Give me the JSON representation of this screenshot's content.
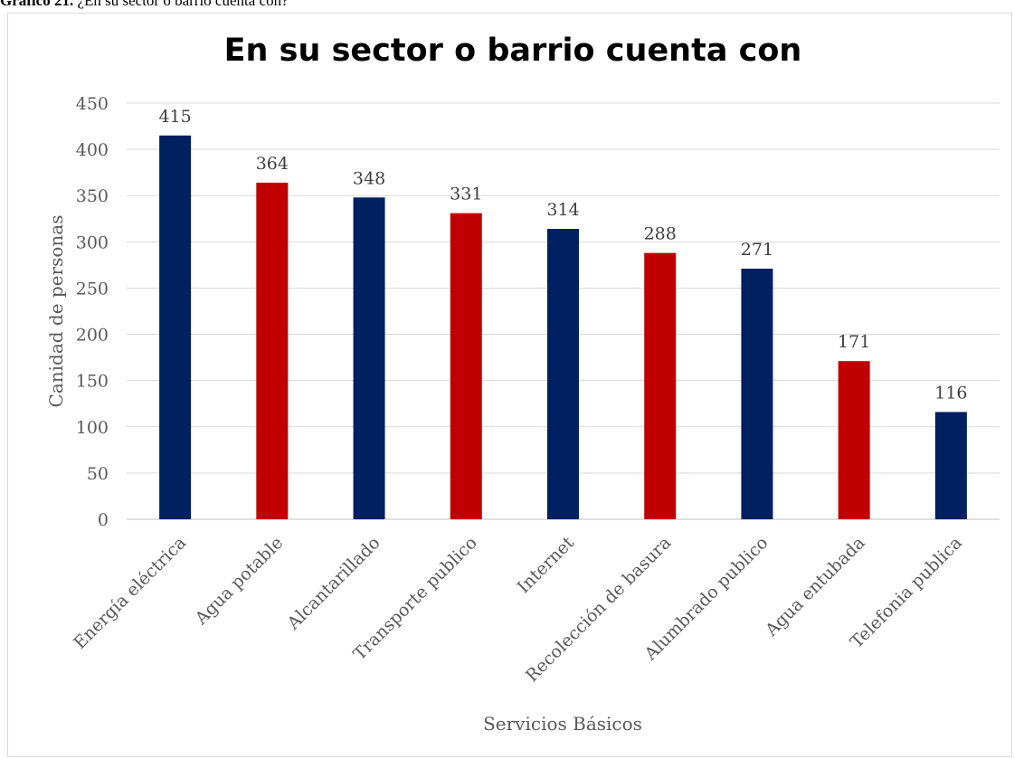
{
  "caption": {
    "label": "Gráfico 21.",
    "text": "¿En su sector o barrio cuenta con?"
  },
  "chart_data": {
    "type": "bar",
    "title": "En su sector o barrio cuenta con",
    "xlabel": "Servicios Básicos",
    "ylabel": "Canidad de personas",
    "categories": [
      "Energía eléctrica",
      "Agua potable",
      "Alcantarillado",
      "Transporte publico",
      "Internet",
      "Recolección de basura",
      "Alumbrado publico",
      "Agua entubada",
      "Telefonia publica"
    ],
    "values": [
      415,
      364,
      348,
      331,
      314,
      288,
      271,
      171,
      116
    ],
    "bar_colors": [
      "#002060",
      "#C00000",
      "#002060",
      "#C00000",
      "#002060",
      "#C00000",
      "#002060",
      "#C00000",
      "#002060"
    ],
    "ylim": [
      0,
      450
    ],
    "yticks": [
      0,
      50,
      100,
      150,
      200,
      250,
      300,
      350,
      400,
      450
    ],
    "grid": true,
    "data_labels": true,
    "legend": "none"
  }
}
